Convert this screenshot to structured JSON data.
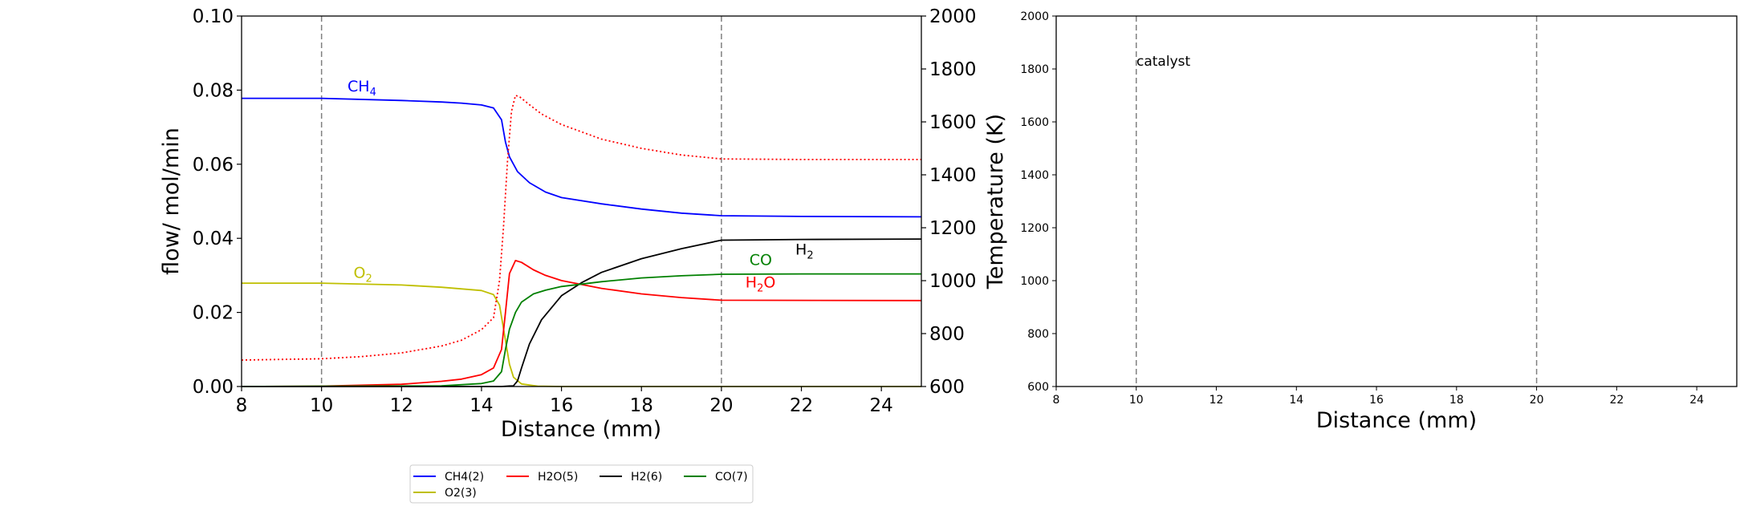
{
  "chart_data": [
    {
      "type": "line",
      "xlabel": "Distance (mm)",
      "ylabel": "flow/ mol/min",
      "y2label": "Temperature (K)",
      "xlim": [
        8,
        25
      ],
      "ylim": [
        0,
        0.1
      ],
      "y2lim": [
        600,
        2000
      ],
      "xticks": [
        "8",
        "10",
        "12",
        "14",
        "16",
        "18",
        "20",
        "22",
        "24"
      ],
      "yticks": [
        "0.00",
        "0.02",
        "0.04",
        "0.06",
        "0.08",
        "0.10"
      ],
      "y2ticks": [
        "600",
        "800",
        "1000",
        "1200",
        "1400",
        "1600",
        "1800",
        "2000"
      ],
      "vlines": [
        10,
        20
      ],
      "series": [
        {
          "name": "CH4(2)",
          "color": "#0000ff",
          "style": "solid",
          "axis": "left",
          "points": [
            [
              8,
              0.0778
            ],
            [
              10,
              0.0778
            ],
            [
              12,
              0.0772
            ],
            [
              13,
              0.0768
            ],
            [
              13.5,
              0.0765
            ],
            [
              14,
              0.076
            ],
            [
              14.3,
              0.0752
            ],
            [
              14.5,
              0.072
            ],
            [
              14.6,
              0.066
            ],
            [
              14.7,
              0.062
            ],
            [
              14.9,
              0.058
            ],
            [
              15.2,
              0.055
            ],
            [
              15.6,
              0.0525
            ],
            [
              16,
              0.051
            ],
            [
              17,
              0.0493
            ],
            [
              18,
              0.0479
            ],
            [
              19,
              0.0468
            ],
            [
              20,
              0.0461
            ],
            [
              22,
              0.0459
            ],
            [
              25,
              0.0458
            ]
          ]
        },
        {
          "name": "O2(3)",
          "color": "#bfbf00",
          "style": "solid",
          "axis": "left",
          "points": [
            [
              8,
              0.0279
            ],
            [
              10,
              0.0279
            ],
            [
              12,
              0.0274
            ],
            [
              13,
              0.0268
            ],
            [
              14,
              0.0259
            ],
            [
              14.3,
              0.0248
            ],
            [
              14.45,
              0.022
            ],
            [
              14.6,
              0.0125
            ],
            [
              14.7,
              0.006
            ],
            [
              14.8,
              0.0025
            ],
            [
              15,
              0.0007
            ],
            [
              15.4,
              0.0001
            ],
            [
              16,
              0
            ],
            [
              25,
              0
            ]
          ]
        },
        {
          "name": "H2O(5)",
          "color": "#ff0000",
          "style": "solid",
          "axis": "left",
          "points": [
            [
              8,
              0
            ],
            [
              10,
              0.0001
            ],
            [
              12,
              0.0006
            ],
            [
              13,
              0.0014
            ],
            [
              13.5,
              0.002
            ],
            [
              14,
              0.0032
            ],
            [
              14.3,
              0.005
            ],
            [
              14.5,
              0.01
            ],
            [
              14.6,
              0.02
            ],
            [
              14.7,
              0.0305
            ],
            [
              14.85,
              0.034
            ],
            [
              15,
              0.0335
            ],
            [
              15.3,
              0.0315
            ],
            [
              15.6,
              0.03
            ],
            [
              16,
              0.0286
            ],
            [
              17,
              0.0265
            ],
            [
              18,
              0.025
            ],
            [
              19,
              0.024
            ],
            [
              20,
              0.0233
            ],
            [
              25,
              0.0232
            ]
          ]
        },
        {
          "name": "H2(6)",
          "color": "#000000",
          "style": "solid",
          "axis": "left",
          "points": [
            [
              8,
              0
            ],
            [
              14.5,
              0
            ],
            [
              14.8,
              0.0002
            ],
            [
              14.9,
              0.0015
            ],
            [
              15,
              0.005
            ],
            [
              15.2,
              0.0115
            ],
            [
              15.5,
              0.018
            ],
            [
              16,
              0.0245
            ],
            [
              16.5,
              0.028
            ],
            [
              17,
              0.0308
            ],
            [
              18,
              0.0345
            ],
            [
              19,
              0.0372
            ],
            [
              20,
              0.0395
            ],
            [
              22,
              0.0397
            ],
            [
              25,
              0.0398
            ]
          ]
        },
        {
          "name": "CO(7)",
          "color": "#008000",
          "style": "solid",
          "axis": "left",
          "points": [
            [
              8,
              0
            ],
            [
              13,
              0.0002
            ],
            [
              14,
              0.0008
            ],
            [
              14.3,
              0.0015
            ],
            [
              14.5,
              0.004
            ],
            [
              14.6,
              0.01
            ],
            [
              14.7,
              0.0155
            ],
            [
              14.85,
              0.02
            ],
            [
              15,
              0.0228
            ],
            [
              15.3,
              0.025
            ],
            [
              15.6,
              0.026
            ],
            [
              16,
              0.027
            ],
            [
              17,
              0.0283
            ],
            [
              18,
              0.0293
            ],
            [
              19,
              0.0299
            ],
            [
              20,
              0.0303
            ],
            [
              22,
              0.0304
            ],
            [
              25,
              0.0304
            ]
          ]
        },
        {
          "name": "Temperature",
          "color": "#ff0000",
          "style": "dotted",
          "axis": "right",
          "points": [
            [
              8,
              700
            ],
            [
              10,
              705
            ],
            [
              11,
              713
            ],
            [
              12,
              727
            ],
            [
              13,
              753
            ],
            [
              13.5,
              775
            ],
            [
              14,
              815
            ],
            [
              14.3,
              860
            ],
            [
              14.45,
              1000
            ],
            [
              14.55,
              1200
            ],
            [
              14.65,
              1450
            ],
            [
              14.75,
              1640
            ],
            [
              14.85,
              1700
            ],
            [
              14.95,
              1695
            ],
            [
              15.2,
              1665
            ],
            [
              15.5,
              1630
            ],
            [
              16,
              1590
            ],
            [
              17,
              1535
            ],
            [
              18,
              1500
            ],
            [
              19,
              1475
            ],
            [
              20,
              1460
            ],
            [
              22,
              1458
            ],
            [
              25,
              1458
            ]
          ]
        }
      ],
      "annotations": [
        {
          "label": "CH",
          "sub": "4",
          "x": 10.65,
          "y": 0.0797,
          "color": "#0000ff"
        },
        {
          "label": "O",
          "sub": "2",
          "x": 10.8,
          "y": 0.0293,
          "color": "#bfbf00"
        },
        {
          "label": "H",
          "sub": "2",
          "x": 21.85,
          "y": 0.0356,
          "color": "#000000"
        },
        {
          "label": "CO",
          "sub": "",
          "x": 20.7,
          "y": 0.0328,
          "color": "#008000"
        },
        {
          "label": "H",
          "sub": "2",
          "suffix": "O",
          "x": 20.6,
          "y": 0.0267,
          "color": "#ff0000"
        }
      ]
    },
    {
      "type": "line",
      "xlabel": "Distance (mm)",
      "xlim": [
        8,
        25
      ],
      "ylim": [
        600,
        2000
      ],
      "xticks": [
        "8",
        "10",
        "12",
        "14",
        "16",
        "18",
        "20",
        "22",
        "24"
      ],
      "yticks": [
        "600",
        "800",
        "1000",
        "1200",
        "1400",
        "1600",
        "1800",
        "2000"
      ],
      "vlines": [
        10,
        20
      ],
      "annotation": "catalyst"
    }
  ],
  "legend": {
    "placement": "bottom-center",
    "items": [
      {
        "label": "CH4(2)",
        "color": "#0000ff"
      },
      {
        "label": "H2O(5)",
        "color": "#ff0000"
      },
      {
        "label": "H2(6)",
        "color": "#000000"
      },
      {
        "label": "CO(7)",
        "color": "#008000"
      },
      {
        "label": "O2(3)",
        "color": "#bfbf00"
      }
    ]
  }
}
